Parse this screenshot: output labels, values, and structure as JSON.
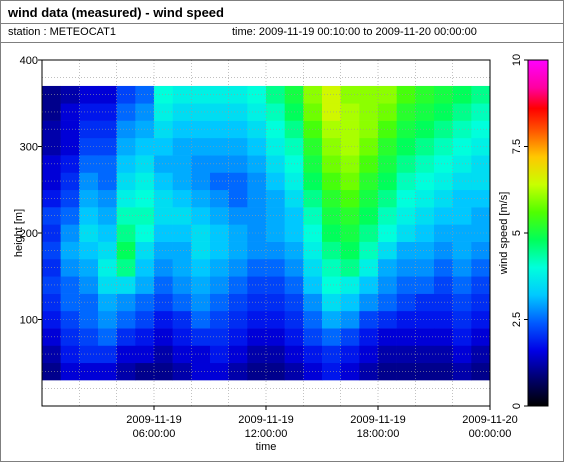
{
  "header": {
    "title": "wind data (measured) - wind speed",
    "station": "station : METEOCAT1",
    "time_range": "time: 2009-11-19 00:10:00 to 2009-11-20 00:00:00"
  },
  "chart_data": {
    "type": "heatmap",
    "title": "wind data (measured) - wind speed",
    "xlabel": "time",
    "ylabel": "height [m]",
    "colorbar_label": "wind speed [m/s]",
    "xlim_hours": [
      0,
      24
    ],
    "ylim": [
      0,
      400
    ],
    "x_ticks": [
      {
        "hour": 6,
        "line1": "2009-11-19",
        "line2": "06:00:00"
      },
      {
        "hour": 12,
        "line1": "2009-11-19",
        "line2": "12:00:00"
      },
      {
        "hour": 18,
        "line1": "2009-11-19",
        "line2": "18:00:00"
      },
      {
        "hour": 24,
        "line1": "2009-11-20",
        "line2": "00:00:00"
      }
    ],
    "y_ticks": [
      100,
      200,
      300,
      400
    ],
    "color_range": [
      0,
      10
    ],
    "colorbar_ticks": [
      0,
      2.5,
      5,
      7.5,
      10
    ],
    "colorbar_tick_labels": [
      "0",
      "2.5",
      "5",
      "7.5",
      "10"
    ],
    "grid": true,
    "heights": [
      40,
      60,
      80,
      100,
      120,
      140,
      160,
      180,
      200,
      220,
      240,
      260,
      280,
      300,
      320,
      340,
      360
    ],
    "times_hours": [
      0.5,
      1.5,
      2.5,
      3.5,
      4.5,
      5.5,
      6.5,
      7.5,
      8.5,
      9.5,
      10.5,
      11.5,
      12.5,
      13.5,
      14.5,
      15.5,
      16.5,
      17.5,
      18.5,
      19.5,
      20.5,
      21.5,
      22.5,
      23.5
    ],
    "speeds": [
      [
        1.0,
        1.5,
        1.5,
        1.5,
        1.2,
        1.0,
        1.0,
        1.2,
        1.5,
        1.5,
        1.2,
        1.0,
        1.0,
        1.2,
        1.5,
        1.8,
        1.5,
        1.2,
        1.0,
        1.0,
        1.0,
        1.0,
        1.2,
        1.0
      ],
      [
        1.2,
        1.8,
        2.0,
        2.0,
        1.5,
        1.5,
        1.2,
        1.5,
        1.5,
        1.8,
        1.5,
        1.2,
        1.2,
        1.5,
        1.8,
        2.0,
        1.8,
        1.5,
        1.2,
        1.2,
        1.2,
        1.2,
        1.5,
        1.2
      ],
      [
        1.5,
        2.0,
        2.2,
        2.5,
        2.0,
        1.8,
        1.5,
        1.8,
        2.0,
        2.0,
        1.8,
        1.5,
        1.5,
        1.8,
        2.2,
        2.5,
        2.2,
        1.8,
        1.5,
        1.5,
        1.5,
        1.5,
        1.8,
        1.5
      ],
      [
        1.8,
        2.2,
        2.5,
        2.8,
        2.5,
        2.2,
        1.8,
        2.0,
        2.5,
        2.2,
        2.0,
        1.8,
        1.8,
        2.0,
        2.5,
        3.0,
        2.8,
        2.2,
        2.0,
        1.8,
        1.8,
        1.8,
        2.0,
        1.8
      ],
      [
        2.0,
        2.5,
        2.5,
        3.0,
        2.8,
        2.5,
        2.2,
        2.5,
        2.8,
        2.5,
        2.2,
        2.0,
        2.0,
        2.2,
        2.8,
        3.5,
        3.2,
        2.8,
        2.5,
        2.2,
        2.0,
        2.0,
        2.2,
        2.0
      ],
      [
        2.2,
        2.5,
        2.8,
        3.5,
        3.5,
        3.0,
        2.5,
        2.8,
        3.0,
        2.8,
        2.5,
        2.2,
        2.2,
        2.5,
        3.2,
        4.0,
        3.8,
        3.2,
        2.8,
        2.5,
        2.5,
        2.2,
        2.5,
        2.2
      ],
      [
        2.0,
        2.8,
        3.0,
        3.8,
        4.5,
        3.2,
        2.8,
        3.0,
        3.2,
        3.0,
        2.8,
        2.5,
        2.5,
        2.8,
        3.5,
        4.2,
        4.5,
        3.8,
        3.0,
        2.8,
        2.8,
        2.5,
        2.8,
        2.5
      ],
      [
        2.2,
        3.0,
        3.2,
        3.5,
        4.8,
        3.5,
        3.0,
        3.0,
        3.5,
        3.2,
        3.0,
        2.8,
        2.8,
        3.0,
        3.8,
        4.5,
        4.8,
        4.2,
        3.5,
        3.0,
        3.0,
        2.8,
        3.0,
        2.8
      ],
      [
        2.0,
        2.8,
        3.5,
        3.2,
        4.5,
        4.0,
        3.2,
        3.2,
        3.5,
        3.2,
        3.0,
        2.8,
        3.0,
        3.2,
        4.0,
        4.8,
        5.0,
        4.5,
        4.0,
        3.5,
        3.2,
        3.0,
        3.0,
        3.0
      ],
      [
        2.2,
        2.5,
        3.2,
        3.0,
        4.2,
        4.2,
        3.5,
        3.5,
        3.2,
        3.0,
        2.8,
        2.8,
        3.0,
        3.2,
        4.2,
        5.0,
        5.2,
        4.8,
        4.2,
        3.8,
        3.5,
        3.2,
        3.2,
        3.0
      ],
      [
        1.8,
        2.2,
        3.0,
        2.8,
        3.8,
        4.0,
        3.5,
        3.2,
        3.0,
        2.8,
        2.5,
        2.8,
        3.0,
        3.5,
        4.5,
        5.2,
        5.5,
        5.0,
        4.5,
        4.0,
        3.8,
        3.5,
        3.2,
        3.2
      ],
      [
        1.5,
        2.0,
        2.8,
        2.5,
        3.5,
        3.8,
        3.2,
        3.0,
        2.8,
        2.5,
        2.5,
        2.8,
        3.2,
        3.8,
        4.8,
        5.5,
        5.8,
        5.2,
        4.8,
        4.2,
        4.0,
        3.8,
        3.5,
        3.5
      ],
      [
        1.5,
        1.8,
        2.5,
        2.5,
        3.2,
        3.5,
        3.0,
        3.0,
        2.8,
        2.8,
        2.8,
        3.0,
        3.5,
        4.0,
        5.0,
        5.8,
        6.0,
        5.5,
        5.0,
        4.5,
        4.2,
        4.0,
        3.8,
        3.5
      ],
      [
        1.2,
        1.5,
        2.2,
        2.2,
        3.0,
        3.2,
        3.2,
        3.0,
        3.0,
        3.0,
        3.0,
        3.2,
        3.8,
        4.2,
        5.2,
        6.0,
        6.2,
        5.8,
        5.2,
        4.8,
        4.5,
        4.2,
        4.0,
        3.8
      ],
      [
        1.2,
        1.5,
        2.0,
        2.0,
        2.8,
        3.0,
        3.5,
        3.2,
        3.2,
        3.2,
        3.2,
        3.5,
        4.0,
        4.5,
        5.5,
        6.2,
        6.2,
        6.0,
        5.5,
        5.0,
        4.8,
        4.5,
        4.2,
        4.0
      ],
      [
        1.0,
        1.5,
        1.8,
        1.8,
        2.5,
        2.8,
        3.8,
        3.5,
        3.5,
        3.5,
        3.5,
        3.8,
        4.2,
        4.8,
        5.8,
        6.5,
        6.2,
        6.0,
        5.8,
        5.2,
        5.0,
        4.8,
        4.5,
        4.2
      ],
      [
        1.0,
        1.2,
        1.5,
        1.5,
        2.2,
        2.5,
        4.0,
        3.8,
        3.8,
        3.8,
        3.8,
        4.0,
        4.5,
        5.0,
        6.0,
        6.5,
        6.0,
        6.0,
        6.0,
        5.5,
        5.2,
        5.0,
        4.8,
        4.5
      ]
    ]
  }
}
